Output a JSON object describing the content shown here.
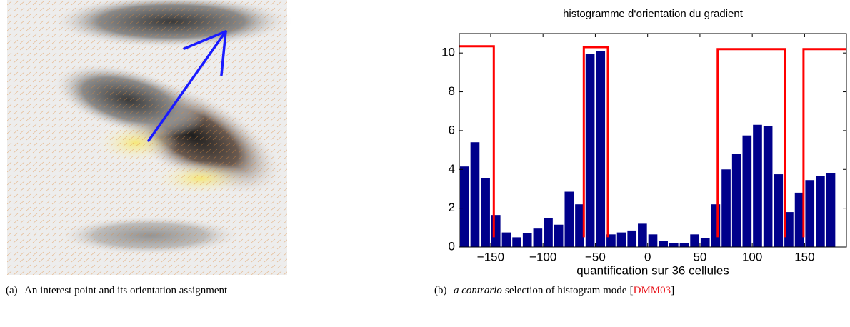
{
  "subfigure_a": {
    "caption": [
      {
        "text": "(a)"
      },
      {
        "text": "An interest point and its orientation assignment"
      }
    ]
  },
  "subfigure_b": {
    "caption": [
      {
        "text": "(b)"
      },
      {
        "text": "a contrario",
        "style": "italic"
      },
      {
        "text": "selection of histogram mode"
      },
      {
        "text": "["
      },
      {
        "text": "DMM03",
        "style": "link"
      },
      {
        "text": "]"
      }
    ]
  },
  "chart_data": {
    "type": "histogram",
    "title": "histogramme d‘orientation du gradient",
    "xlabel": "quantification sur 36 cellules",
    "bins": [
      -180,
      -170,
      -160,
      -150,
      -140,
      -130,
      -120,
      -110,
      -100,
      -90,
      -80,
      -70,
      -60,
      -50,
      -40,
      -30,
      -20,
      -10,
      0,
      10,
      20,
      30,
      40,
      50,
      60,
      70,
      80,
      90,
      100,
      110,
      120,
      130,
      140,
      150,
      160,
      170,
      180
    ],
    "values": [
      4.15,
      5.4,
      3.55,
      1.65,
      0.75,
      0.5,
      0.7,
      0.95,
      1.5,
      1.15,
      2.85,
      2.2,
      9.95,
      10.1,
      0.65,
      0.75,
      0.85,
      1.2,
      0.65,
      0.3,
      0.2,
      0.2,
      0.65,
      0.45,
      2.2,
      4.0,
      4.8,
      5.75,
      6.3,
      6.25,
      3.75,
      1.8,
      2.8,
      3.45,
      3.65,
      3.8
    ],
    "color": "#00008b",
    "line": {
      "color": "#ff0000",
      "x": [
        -180,
        -147,
        -147,
        null,
        -61,
        -61,
        -38,
        -38,
        null,
        67,
        67,
        131,
        131,
        null,
        149,
        149,
        190
      ],
      "y": [
        10.35,
        10.35,
        0.5,
        null,
        0.5,
        10.3,
        10.3,
        0.5,
        null,
        0.5,
        10.2,
        10.2,
        0.5,
        null,
        0.5,
        10.2,
        10.2
      ]
    },
    "xlim": [
      -180,
      190
    ],
    "ylim": [
      0,
      11
    ],
    "xticks": [
      {
        "value": -150,
        "label": "−150"
      },
      {
        "value": -100,
        "label": "−100"
      },
      {
        "value": -50,
        "label": "−50"
      },
      0,
      50,
      100,
      150
    ],
    "yticks": [
      0,
      2,
      4,
      6,
      8,
      10
    ]
  }
}
